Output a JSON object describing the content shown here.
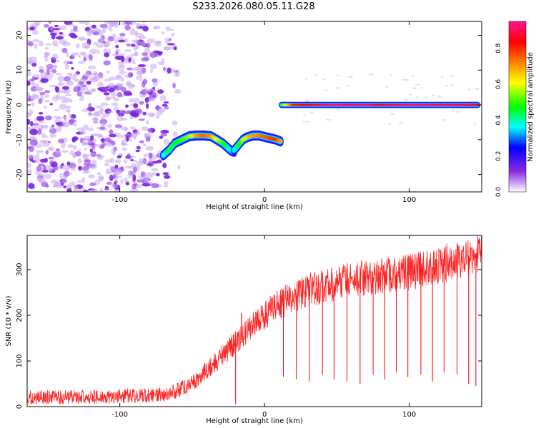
{
  "title": "S233.2026.080.05.11.G28",
  "chart_data": [
    {
      "type": "heatmap",
      "xlabel": "Height of straight line (km)",
      "ylabel": "Frequency (Hz)",
      "xlim": [
        -164,
        150
      ],
      "ylim": [
        -25,
        24
      ],
      "xticks": [
        -100,
        0,
        100
      ],
      "xtick_labels": [
        "-100",
        "0",
        "100"
      ],
      "yticks": [
        -20,
        -10,
        0,
        10,
        20
      ],
      "ytick_labels": [
        "-20",
        "-10",
        "0",
        "10",
        "20"
      ],
      "colorbar": {
        "label": "Normalized spectral amplitude",
        "range": [
          0,
          0.95
        ],
        "ticks": [
          0.0,
          0.2,
          0.4,
          0.6,
          0.8
        ],
        "tick_labels": [
          "0.0",
          "0.2",
          "0.4",
          "0.6",
          "0.8"
        ],
        "colors": [
          "#ffffff",
          "#8a2be2",
          "#0000ff",
          "#00ffff",
          "#00ff00",
          "#ffff00",
          "#ff8000",
          "#ff0000",
          "#ff1493"
        ]
      },
      "noise_region_x": [
        -164,
        -58
      ],
      "trace_segments": [
        {
          "name": "arc-1",
          "x": [
            -70,
            -66,
            -62,
            -57,
            -52,
            -47,
            -42,
            -37,
            -33,
            -29,
            -25,
            -23,
            -21
          ],
          "y": [
            -14.5,
            -13,
            -11,
            -10,
            -9,
            -8.8,
            -8.8,
            -9,
            -10,
            -11,
            -12.5,
            -13.2,
            -13.5
          ],
          "amplitude": [
            0.35,
            0.45,
            0.45,
            0.5,
            0.55,
            0.7,
            0.75,
            0.7,
            0.6,
            0.5,
            0.4,
            0.35,
            0.3
          ]
        },
        {
          "name": "arc-2",
          "x": [
            -21,
            -18,
            -15,
            -12,
            -8,
            -4,
            0,
            4,
            8,
            11
          ],
          "y": [
            -13,
            -11.5,
            -10,
            -9.3,
            -8.8,
            -8.8,
            -9.2,
            -9.6,
            -10,
            -10.5
          ],
          "amplitude": [
            0.35,
            0.45,
            0.55,
            0.65,
            0.7,
            0.72,
            0.75,
            0.78,
            0.8,
            0.7
          ]
        },
        {
          "name": "carrier",
          "x": [
            12,
            20,
            30,
            40,
            50,
            60,
            70,
            80,
            90,
            100,
            110,
            120,
            130,
            140,
            147
          ],
          "y": [
            0,
            0,
            0,
            0,
            0,
            0,
            0,
            0,
            0,
            0,
            0,
            0,
            0,
            0,
            0
          ],
          "amplitude": [
            0.5,
            0.8,
            0.85,
            0.9,
            0.92,
            0.9,
            0.92,
            0.85,
            0.9,
            0.92,
            0.92,
            0.9,
            0.9,
            0.88,
            0.85
          ]
        }
      ]
    },
    {
      "type": "line",
      "xlabel": "Height of straight line (km)",
      "ylabel": "SNR (10 * v/v)",
      "xlim": [
        -164,
        150
      ],
      "ylim": [
        0,
        375
      ],
      "xticks": [
        -100,
        0,
        100
      ],
      "xtick_labels": [
        "-100",
        "0",
        "100"
      ],
      "yticks": [
        0,
        100,
        200,
        300
      ],
      "ytick_labels": [
        "0",
        "100",
        "200",
        "300"
      ],
      "color": "#ff0000",
      "baseline_profile": {
        "x": [
          -164,
          -120,
          -80,
          -65,
          -50,
          -40,
          -30,
          -20,
          -10,
          0,
          10,
          20,
          30,
          40,
          50,
          60,
          70,
          80,
          90,
          100,
          110,
          120,
          130,
          140,
          150
        ],
        "y": [
          20,
          22,
          24,
          28,
          50,
          80,
          110,
          140,
          170,
          200,
          225,
          240,
          255,
          262,
          270,
          280,
          283,
          285,
          290,
          295,
          300,
          310,
          318,
          330,
          340
        ]
      },
      "spike": {
        "x": -16,
        "y": 205
      },
      "dropouts": [
        {
          "x": -20,
          "y": 5
        },
        {
          "x": 13,
          "y": 65
        },
        {
          "x": 22,
          "y": 60
        },
        {
          "x": 31,
          "y": 55
        },
        {
          "x": 40,
          "y": 70
        },
        {
          "x": 48,
          "y": 60
        },
        {
          "x": 57,
          "y": 55
        },
        {
          "x": 66,
          "y": 50
        },
        {
          "x": 75,
          "y": 70
        },
        {
          "x": 83,
          "y": 60
        },
        {
          "x": 91,
          "y": 75
        },
        {
          "x": 99,
          "y": 65
        },
        {
          "x": 108,
          "y": 70
        },
        {
          "x": 116,
          "y": 55
        },
        {
          "x": 124,
          "y": 75
        },
        {
          "x": 133,
          "y": 70
        },
        {
          "x": 141,
          "y": 50
        },
        {
          "x": 146,
          "y": 45
        }
      ]
    }
  ]
}
